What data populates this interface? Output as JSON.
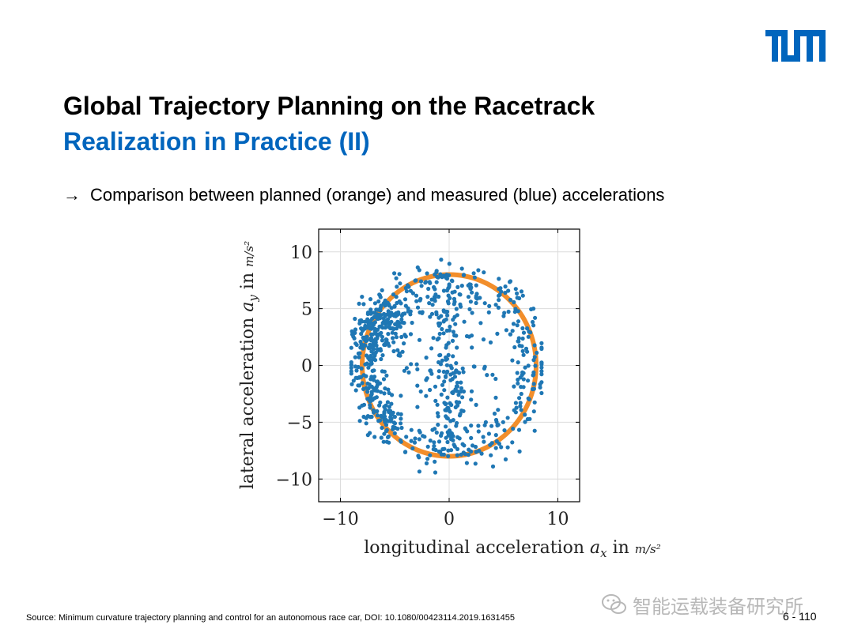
{
  "logo": {
    "text": "TUM",
    "color": "#0065bd"
  },
  "header": {
    "title": "Global Trajectory Planning on the Racetrack",
    "subtitle": "Realization in Practice (II)"
  },
  "bullet": {
    "arrow": "→",
    "text": "Comparison between planned (orange) and measured (blue) accelerations"
  },
  "chart_data": {
    "type": "scatter",
    "title": "",
    "xlabel": "longitudinal acceleration a_x in m/s²",
    "ylabel": "lateral acceleration a_y in m/s²",
    "xlim": [
      -12,
      12
    ],
    "ylim": [
      -12,
      12
    ],
    "xticks": [
      -10,
      0,
      10
    ],
    "yticks": [
      -10,
      -5,
      0,
      5,
      10
    ],
    "xtick_labels": [
      "−10",
      "0",
      "10"
    ],
    "ytick_labels": [
      "−10",
      "−5",
      "0",
      "5",
      "10"
    ],
    "grid": true,
    "series": [
      {
        "name": "planned",
        "kind": "limit-circle",
        "color": "#f28e2b",
        "center": [
          0,
          0
        ],
        "radius": 8
      },
      {
        "name": "measured",
        "kind": "points",
        "color": "#1f77b4",
        "count": 900
      }
    ]
  },
  "footer": {
    "source": "Source: Minimum curvature trajectory planning and control for an autonomous race car, DOI: 10.1080/00423114.2019.1631455",
    "page": "6 - 110",
    "watermark": "智能运载装备研究所"
  }
}
